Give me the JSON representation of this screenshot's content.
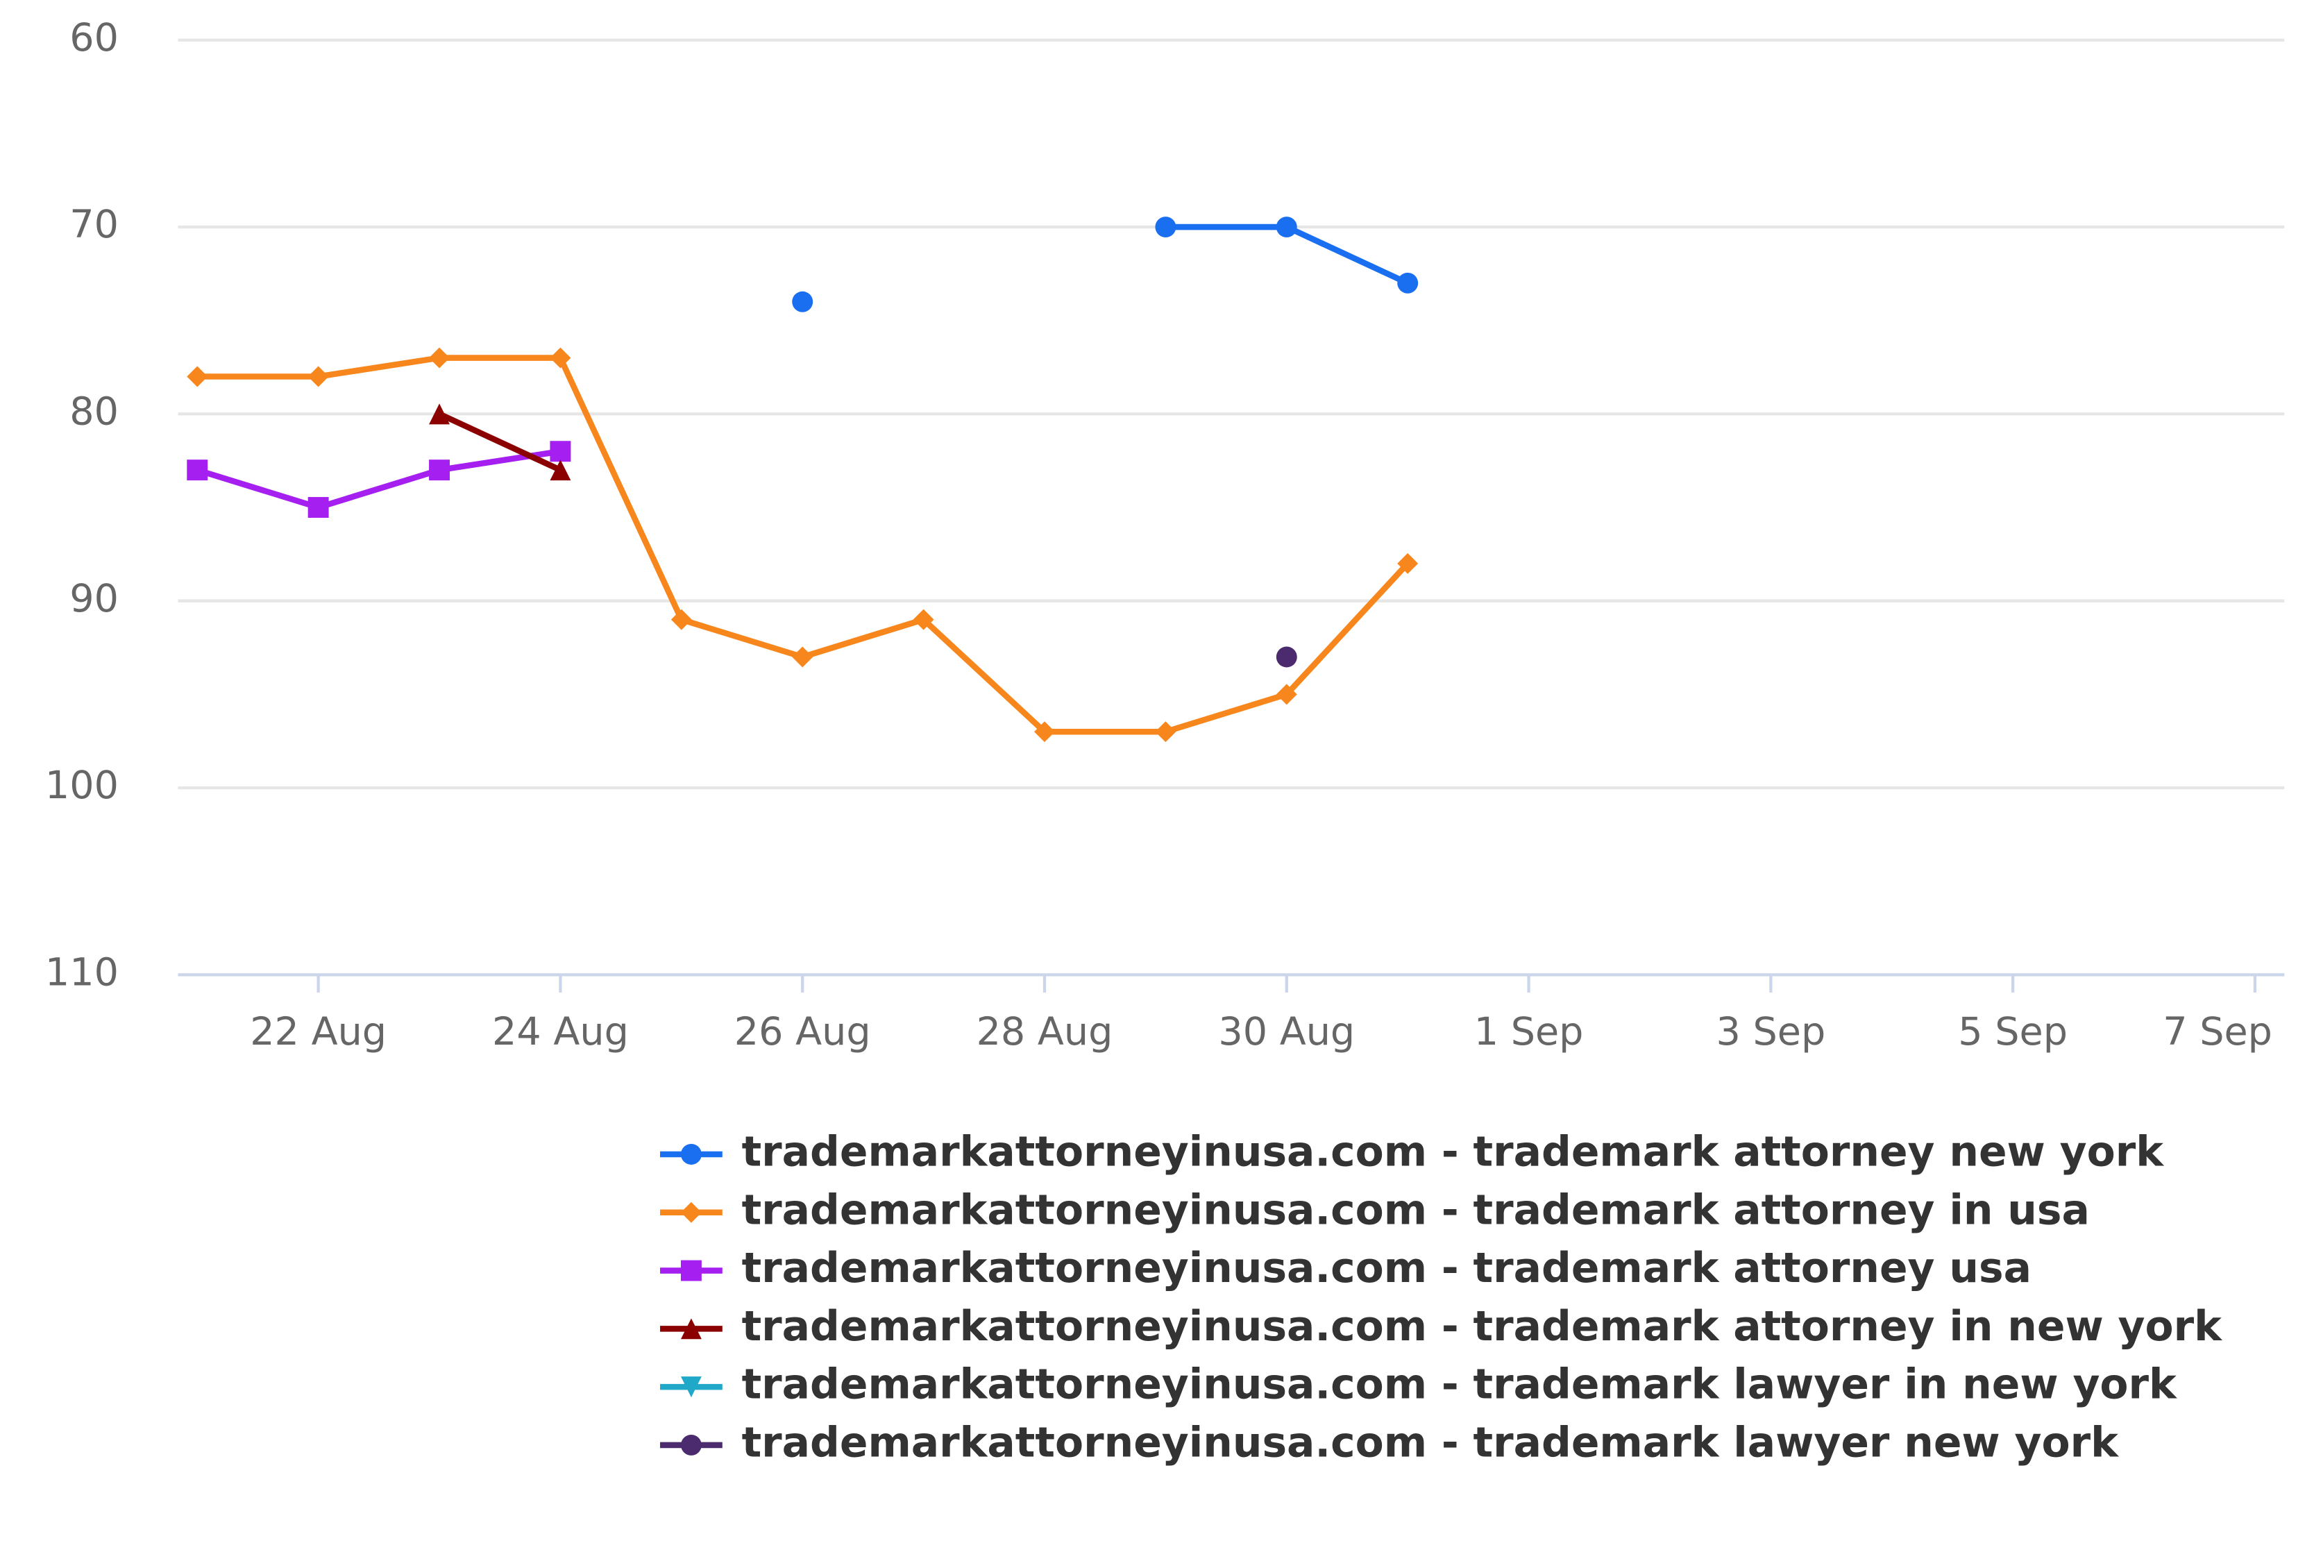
{
  "chart_data": {
    "type": "line",
    "categories": [
      null,
      "22 Aug",
      null,
      "24 Aug",
      null,
      "26 Aug",
      null,
      "28 Aug",
      null,
      "30 Aug",
      null,
      "1 Sep",
      null,
      "3 Sep",
      null,
      "5 Sep",
      null,
      "7 Sep"
    ],
    "ylim": [
      60,
      110
    ],
    "yticks": [
      60,
      70,
      80,
      90,
      100,
      110
    ],
    "y_reversed": true,
    "grid": true,
    "series": [
      {
        "name": "trademarkattorneyinusa.com - trademark attorney new york",
        "color": "#1a6ef0",
        "marker": "circle",
        "values": [
          null,
          null,
          null,
          null,
          null,
          74,
          null,
          null,
          70,
          70,
          73,
          null,
          null,
          null,
          null,
          null,
          null,
          null
        ]
      },
      {
        "name": "trademarkattorneyinusa.com - trademark attorney in usa",
        "color": "#f7861c",
        "marker": "diamond",
        "values": [
          78,
          78,
          77,
          77,
          91,
          93,
          91,
          97,
          97,
          95,
          88,
          null,
          null,
          null,
          null,
          null,
          null,
          null
        ]
      },
      {
        "name": "trademarkattorneyinusa.com - trademark attorney usa",
        "color": "#a51ff0",
        "marker": "square",
        "values": [
          83,
          85,
          83,
          82,
          null,
          null,
          null,
          null,
          null,
          null,
          null,
          null,
          null,
          null,
          null,
          null,
          null,
          null
        ]
      },
      {
        "name": "trademarkattorneyinusa.com - trademark attorney in new york",
        "color": "#8b0000",
        "marker": "triangle",
        "values": [
          null,
          null,
          80,
          83,
          null,
          null,
          null,
          null,
          null,
          null,
          null,
          null,
          null,
          null,
          null,
          null,
          null,
          null
        ]
      },
      {
        "name": "trademarkattorneyinusa.com - trademark lawyer in new york",
        "color": "#1fa8c8",
        "marker": "triangle-down",
        "values": [
          null,
          null,
          null,
          null,
          null,
          null,
          null,
          null,
          null,
          null,
          null,
          null,
          null,
          null,
          null,
          null,
          null,
          null
        ]
      },
      {
        "name": "trademarkattorneyinusa.com - trademark lawyer new york",
        "color": "#4b2a6e",
        "marker": "circle",
        "values": [
          null,
          null,
          null,
          null,
          null,
          null,
          null,
          null,
          null,
          93,
          null,
          null,
          null,
          null,
          null,
          null,
          null,
          null
        ]
      }
    ]
  }
}
